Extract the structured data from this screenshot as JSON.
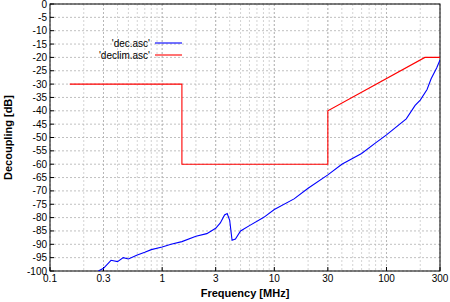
{
  "chart_data": {
    "type": "line",
    "x_label": "Frequency [MHz]",
    "y_label": "Decoupling [dB]",
    "log": "x",
    "grid": true,
    "legend": "upper left",
    "xlim": [
      0.1,
      300
    ],
    "ylim": [
      -100,
      0
    ],
    "xticks": [
      0.1,
      0.3,
      1,
      3,
      10,
      30,
      100,
      300
    ],
    "yticks": [
      -100,
      -95,
      -90,
      -85,
      -80,
      -75,
      -70,
      -65,
      -60,
      -55,
      -50,
      -45,
      -40,
      -35,
      -30,
      -25,
      -20,
      -15,
      -10,
      -5,
      0
    ],
    "series": [
      {
        "name": "'dec.asc'",
        "color": "#0000ff",
        "x": [
          0.27,
          0.3,
          0.35,
          0.4,
          0.45,
          0.5,
          0.6,
          0.7,
          0.8,
          1.0,
          1.2,
          1.5,
          2,
          2.5,
          3,
          3.3,
          3.6,
          3.8,
          4.0,
          4.2,
          4.5,
          5,
          6,
          8,
          10,
          15,
          20,
          30,
          40,
          60,
          80,
          100,
          150,
          180,
          200,
          230,
          250,
          280,
          300
        ],
        "values": [
          -100,
          -99,
          -96,
          -96.5,
          -95,
          -95.5,
          -94,
          -93,
          -92,
          -91,
          -90,
          -89,
          -87,
          -86,
          -84,
          -82,
          -79,
          -78.5,
          -81,
          -88.5,
          -88,
          -85,
          -83,
          -80,
          -77,
          -73,
          -69,
          -64,
          -60,
          -56,
          -52,
          -49,
          -43,
          -38,
          -36,
          -32,
          -28,
          -24,
          -21
        ]
      },
      {
        "name": "'declim.asc'",
        "color": "#ff0000",
        "x": [
          0.15,
          1.5,
          1.5,
          30,
          30,
          220,
          300
        ],
        "values": [
          -30,
          -30,
          -60,
          -60,
          -40,
          -20,
          -20
        ]
      }
    ]
  }
}
